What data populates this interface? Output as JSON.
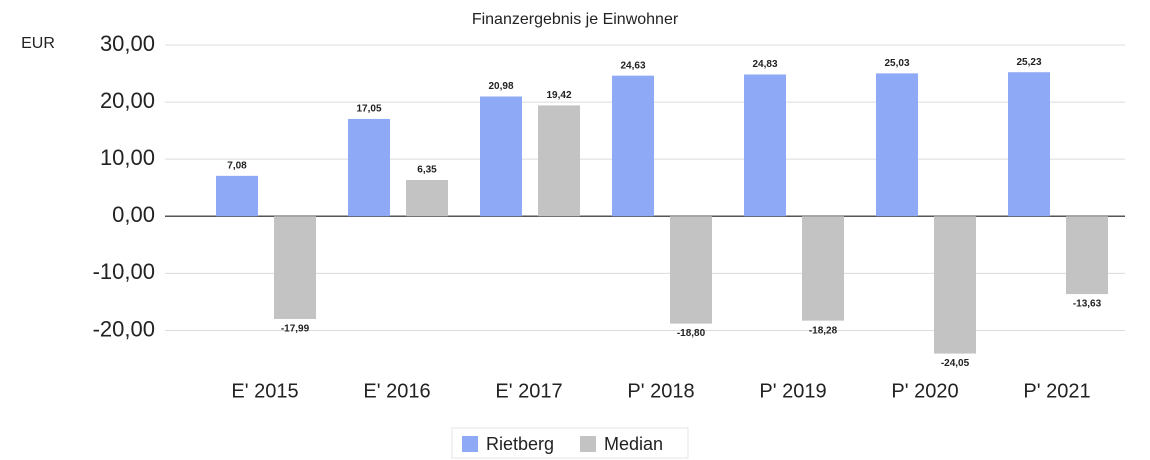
{
  "chart_data": {
    "type": "bar",
    "title": "Finanzergebnis je Einwohner",
    "y_label": "EUR",
    "categories": [
      "E' 2015",
      "E' 2016",
      "E' 2017",
      "P' 2018",
      "P' 2019",
      "P' 2020",
      "P' 2021"
    ],
    "series": [
      {
        "name": "Rietberg",
        "color": "#8ea9f5",
        "values": [
          7.08,
          17.05,
          20.98,
          24.63,
          24.83,
          25.03,
          25.23
        ],
        "value_labels": [
          "7,08",
          "17,05",
          "20,98",
          "24,63",
          "24,83",
          "25,03",
          "25,23"
        ]
      },
      {
        "name": "Median",
        "color": "#c3c3c3",
        "values": [
          -17.99,
          6.35,
          19.42,
          -18.8,
          -18.28,
          -24.05,
          -13.63
        ],
        "value_labels": [
          "-17,99",
          "6,35",
          "19,42",
          "-18,80",
          "-18,28",
          "-24,05",
          "-13,63"
        ]
      }
    ],
    "ylim": [
      -25,
      30
    ],
    "yticks": [
      {
        "value": -20,
        "label": "-20,00"
      },
      {
        "value": -10,
        "label": "-10,00"
      },
      {
        "value": 0,
        "label": "0,00"
      },
      {
        "value": 10,
        "label": "10,00"
      },
      {
        "value": 20,
        "label": "20,00"
      },
      {
        "value": 30,
        "label": "30,00"
      }
    ],
    "grid": true,
    "legend": "bottom"
  }
}
